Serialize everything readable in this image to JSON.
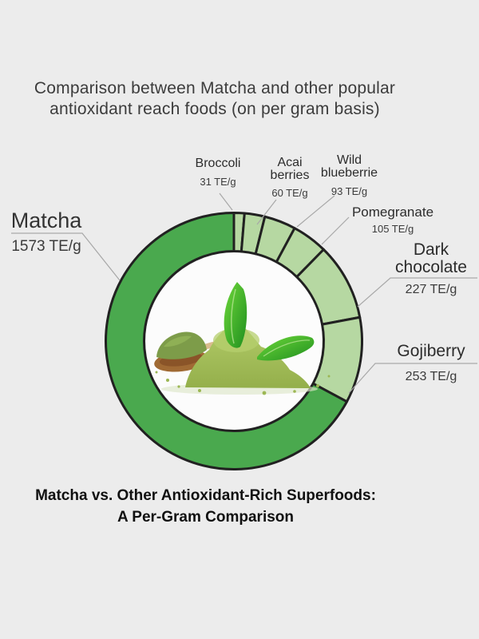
{
  "page": {
    "background_color": "#ececec",
    "title": {
      "lines": [
        "Comparison between Matcha and other popular",
        "antioxidant reach foods (on per gram basis)"
      ]
    },
    "caption": {
      "lines": [
        "Matcha vs. Other Antioxidant-Rich Superfoods:",
        "A Per-Gram Comparison"
      ]
    }
  },
  "chart_data": {
    "type": "pie",
    "variant": "donut",
    "title": "Comparison between Matcha and other popular antioxidant reach foods (on per gram basis)",
    "unit": "TE/g",
    "direction": "clockwise",
    "start_angle_deg": 0,
    "outline_color": "#212121",
    "inner_circle_color": "#fcfcfc",
    "leader_line_color": "#a8a8a8",
    "center_image": "matcha-powder-pile-with-leaves-and-wooden-spoon",
    "slices": [
      {
        "label": "Broccoli",
        "value": 31,
        "value_label": "31 TE/g",
        "color": "#b6d8a2"
      },
      {
        "label": "Acai berries",
        "label_lines": [
          "Acai",
          "berries"
        ],
        "value": 60,
        "value_label": "60 TE/g",
        "color": "#b6d8a2"
      },
      {
        "label": "Wild blueberrie",
        "label_lines": [
          "Wild",
          "blueberrie"
        ],
        "value": 93,
        "value_label": "93 TE/g",
        "color": "#b6d8a2"
      },
      {
        "label": "Pomegranate",
        "value": 105,
        "value_label": "105 TE/g",
        "color": "#b6d8a2"
      },
      {
        "label": "Dark chocolate",
        "label_lines": [
          "Dark",
          "chocolate"
        ],
        "value": 227,
        "value_label": "227 TE/g",
        "color": "#b6d8a2"
      },
      {
        "label": "Gojiberry",
        "value": 253,
        "value_label": "253 TE/g",
        "color": "#b6d8a2"
      },
      {
        "label": "Matcha",
        "value": 1573,
        "value_label": "1573 TE/g",
        "color": "#4aa94e"
      }
    ]
  }
}
